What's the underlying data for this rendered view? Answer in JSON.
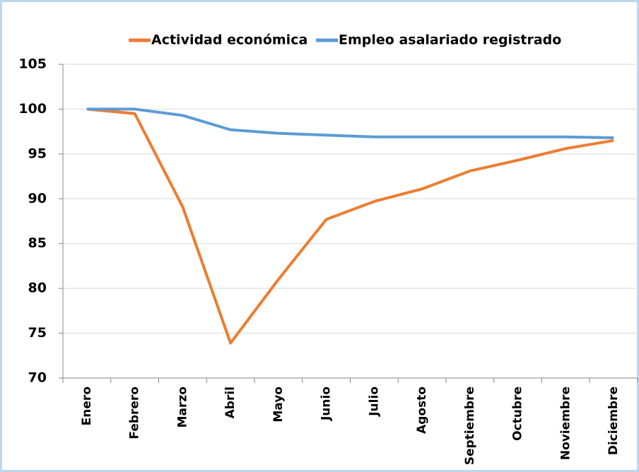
{
  "chart_data": {
    "type": "line",
    "categories": [
      "Enero",
      "Febrero",
      "Marzo",
      "Abril",
      "Mayo",
      "Junio",
      "Julio",
      "Agosto",
      "Septiembre",
      "Octubre",
      "Noviembre",
      "Diciembre"
    ],
    "series": [
      {
        "name": "Actividad económica",
        "color": "#ed7d31",
        "values": [
          100,
          99.5,
          89.1,
          73.9,
          81.0,
          87.7,
          89.7,
          91.1,
          93.1,
          94.3,
          95.6,
          96.5
        ]
      },
      {
        "name": "Empleo asalariado registrado",
        "color": "#5b9bd5",
        "values": [
          100,
          100,
          99.3,
          97.7,
          97.3,
          97.1,
          96.9,
          96.9,
          96.9,
          96.9,
          96.9,
          96.8
        ]
      }
    ],
    "ylim": [
      70,
      105
    ],
    "yticks": [
      70,
      75,
      80,
      85,
      90,
      95,
      100,
      105
    ],
    "grid": true,
    "legend": "top"
  }
}
